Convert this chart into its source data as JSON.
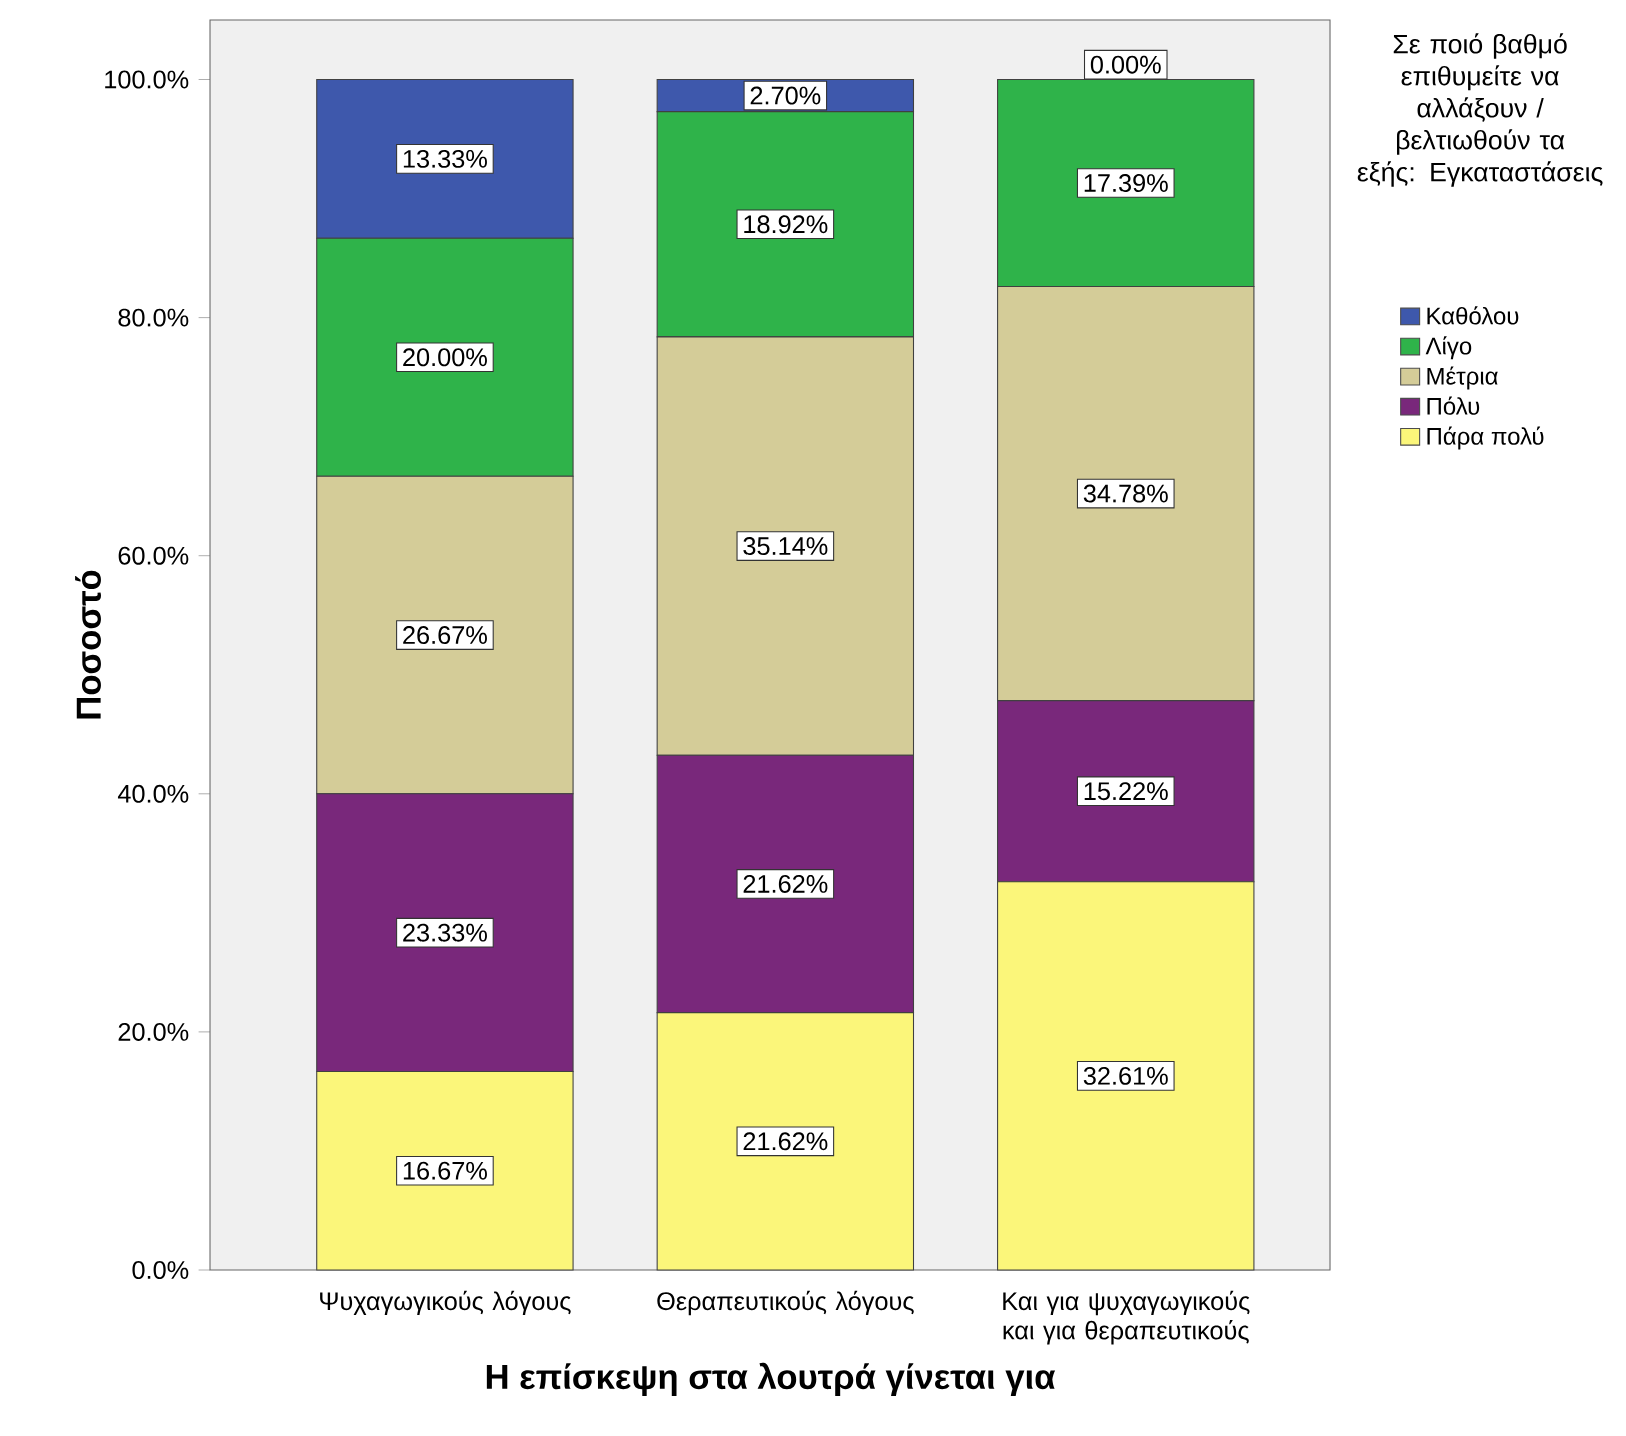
{
  "chart_data": {
    "type": "bar",
    "stacked": true,
    "xlabel": "Η επίσκεψη στα λουτρά γίνεται για",
    "ylabel": "Ποσοστό",
    "legend_title": "Σε ποιό βαθμό επιθυμείτε να αλλάξουν / βελτιωθούν τα εξής: Εγκαταστάσεις",
    "legend": "right",
    "categories": [
      "Ψυχαγωγικούς λόγους",
      "Θεραπευτικούς λόγους",
      "Και για ψυχαγωγικούς και για θεραπευτικούς"
    ],
    "ylim": [
      0,
      105
    ],
    "yticks": [
      {
        "value": 0,
        "label": "0.0%"
      },
      {
        "value": 20,
        "label": "20.0%"
      },
      {
        "value": 40,
        "label": "40.0%"
      },
      {
        "value": 60,
        "label": "60.0%"
      },
      {
        "value": 80,
        "label": "80.0%"
      },
      {
        "value": 100,
        "label": "100.0%"
      }
    ],
    "series": [
      {
        "name": "Πάρα πολύ",
        "color": "#fbf67a",
        "values": [
          16.67,
          21.62,
          32.61
        ],
        "value_labels": [
          "16.67%",
          "21.62%",
          "32.61%"
        ]
      },
      {
        "name": "Πόλυ",
        "color": "#79287b",
        "values": [
          23.33,
          21.62,
          15.22
        ],
        "value_labels": [
          "23.33%",
          "21.62%",
          "15.22%"
        ]
      },
      {
        "name": "Μέτρια",
        "color": "#d4cc98",
        "values": [
          26.67,
          35.14,
          34.78
        ],
        "value_labels": [
          "26.67%",
          "35.14%",
          "34.78%"
        ]
      },
      {
        "name": "Λίγο",
        "color": "#2fb34a",
        "values": [
          20.0,
          18.92,
          17.39
        ],
        "value_labels": [
          "20.00%",
          "18.92%",
          "17.39%"
        ]
      },
      {
        "name": "Καθόλου",
        "color": "#3e58ac",
        "values": [
          13.33,
          2.7,
          0.0
        ],
        "value_labels": [
          "13.33%",
          "2.70%",
          "0.00%"
        ]
      }
    ]
  }
}
